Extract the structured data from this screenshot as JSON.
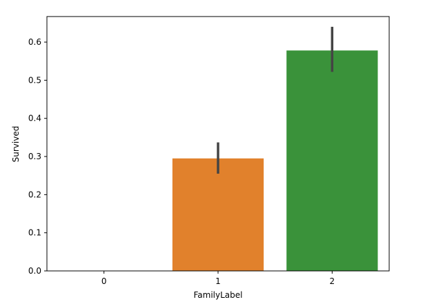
{
  "chart_data": {
    "type": "bar",
    "title": "",
    "xlabel": "FamilyLabel",
    "ylabel": "Survived",
    "categories": [
      "0",
      "1",
      "2"
    ],
    "values": [
      0.0,
      0.295,
      0.578
    ],
    "error_bars": [
      {
        "low": 0.0,
        "high": 0.0
      },
      {
        "low": 0.255,
        "high": 0.337
      },
      {
        "low": 0.522,
        "high": 0.64
      }
    ],
    "ylim": [
      0,
      0.667
    ],
    "yticks": [
      0.0,
      0.1,
      0.2,
      0.3,
      0.4,
      0.5,
      0.6
    ],
    "ytick_labels": [
      "0.0",
      "0.1",
      "0.2",
      "0.3",
      "0.4",
      "0.5",
      "0.6"
    ],
    "grid": false,
    "legend": "none",
    "colors": [
      "#1f77b4",
      "#e1812c",
      "#3a923a"
    ],
    "errorbar_color": "#444444"
  }
}
